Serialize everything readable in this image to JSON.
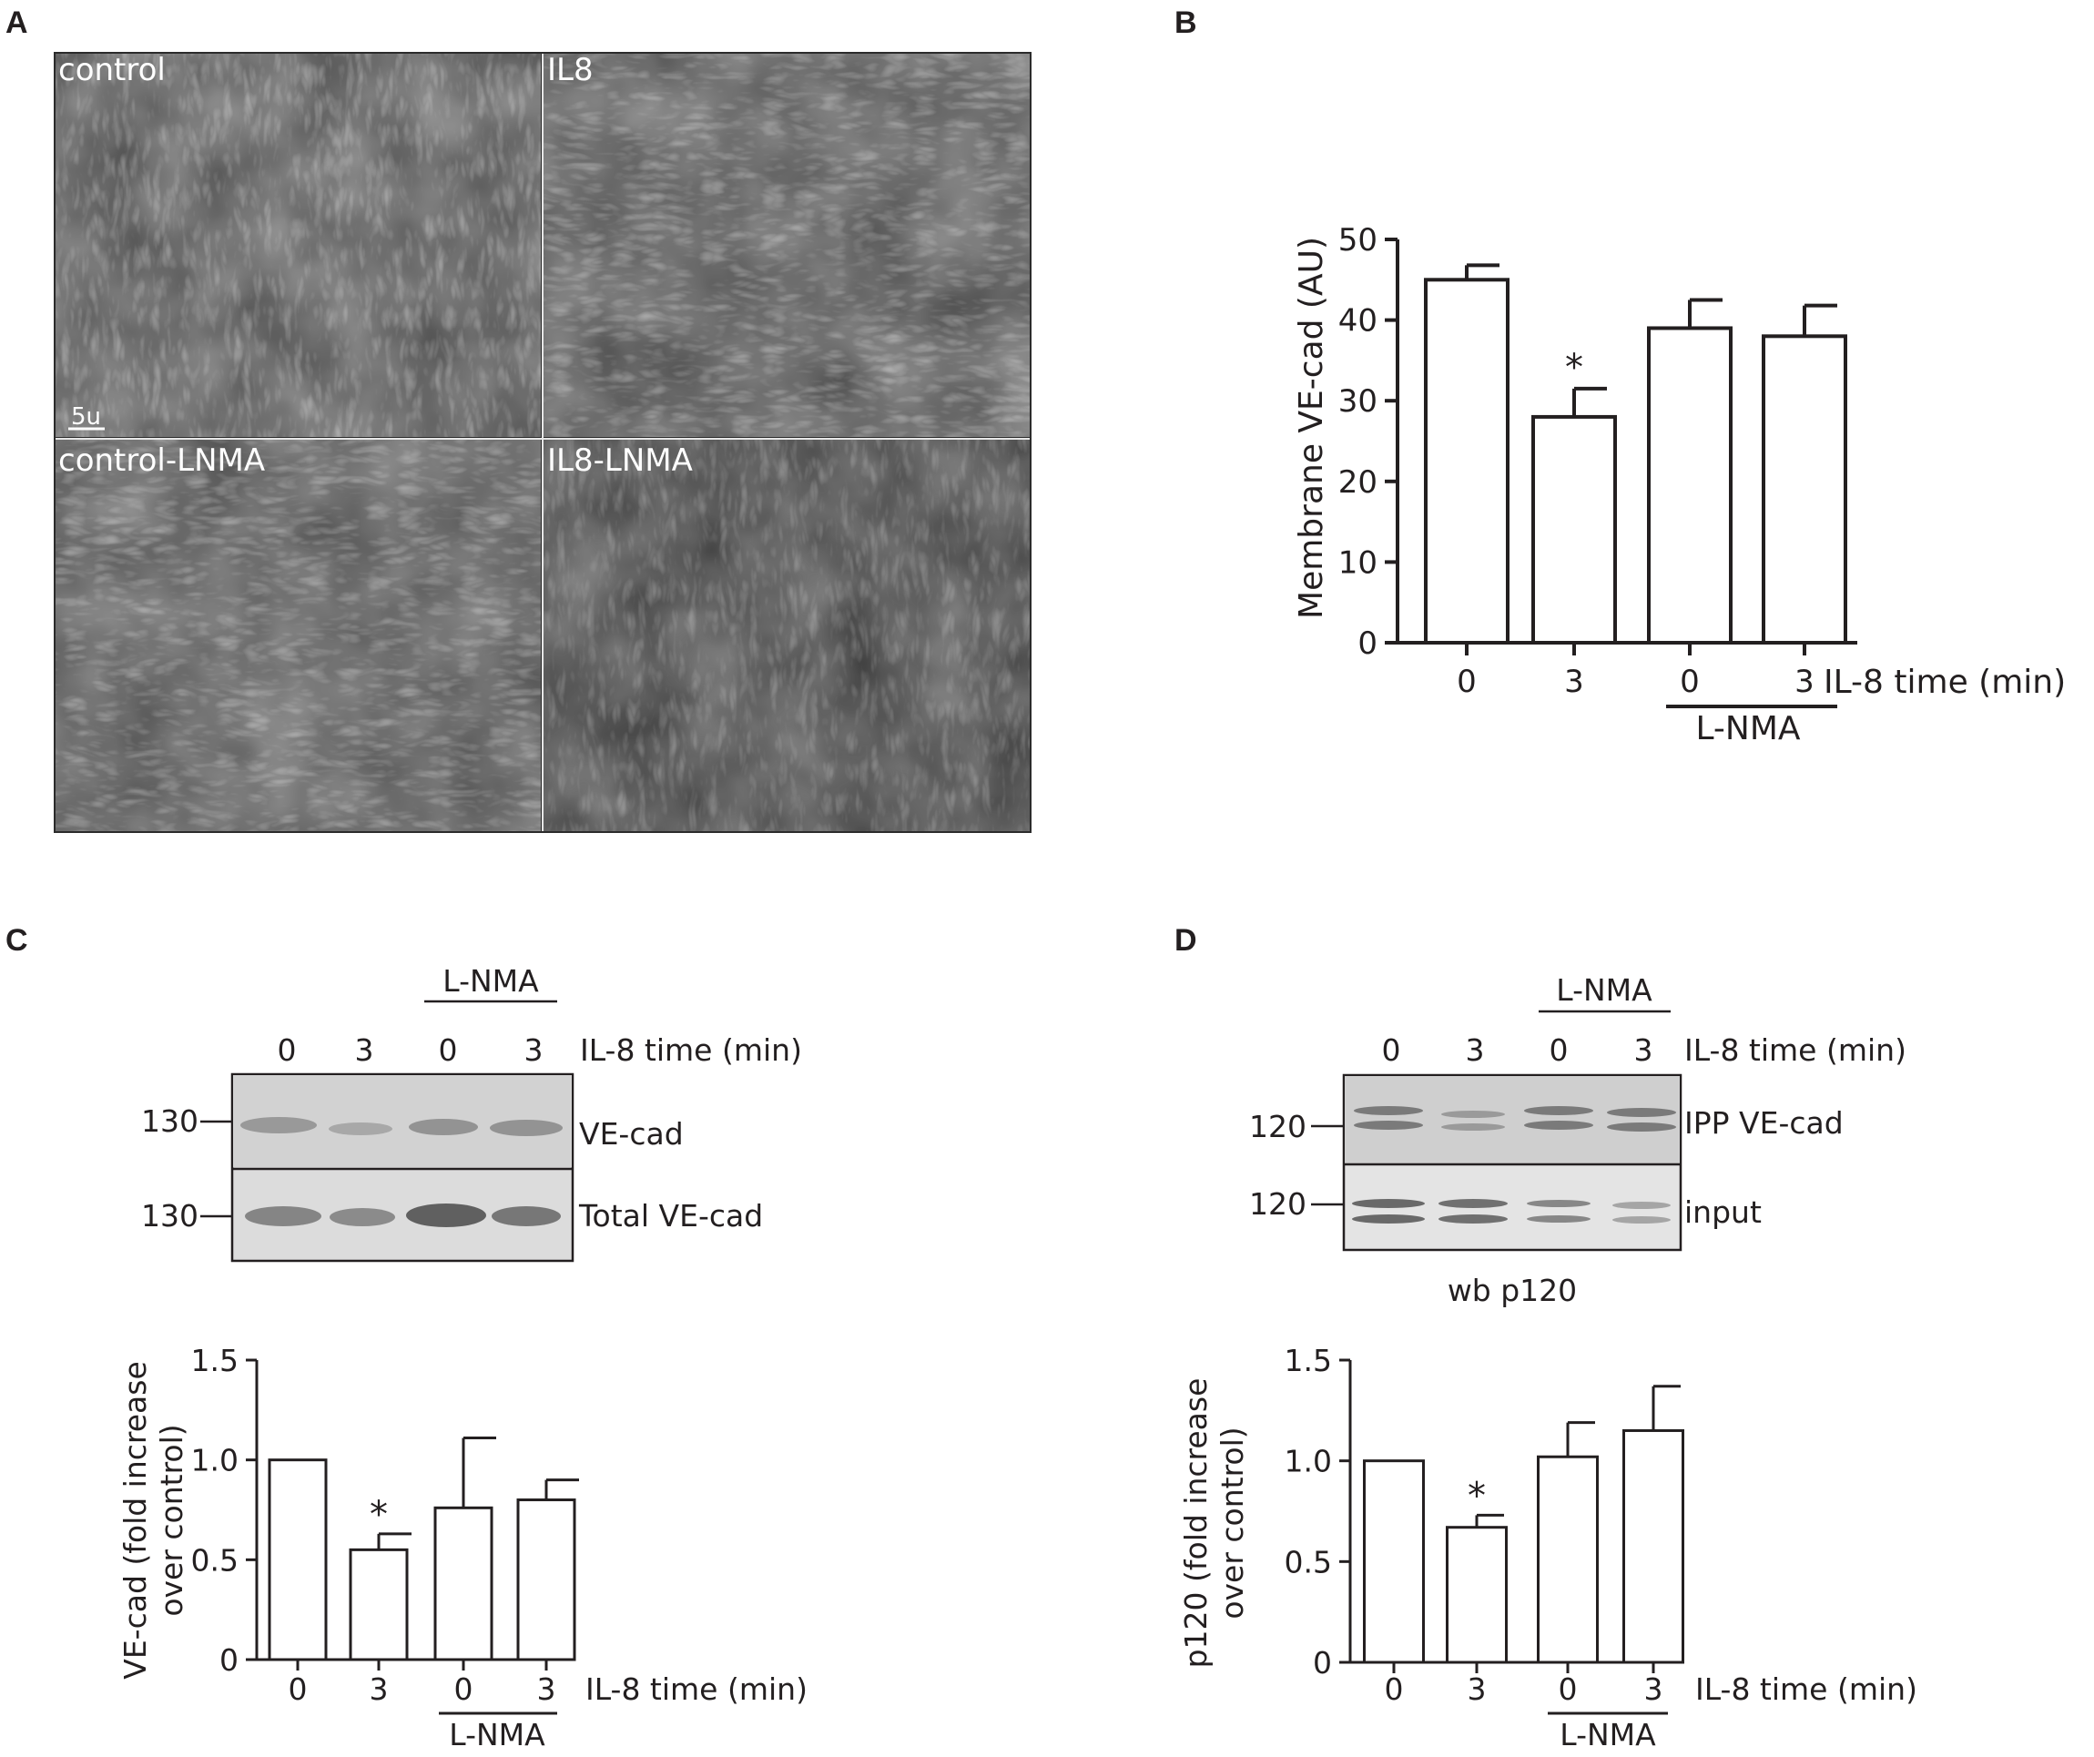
{
  "panel_a": {
    "label": "A",
    "images": [
      {
        "name": "control",
        "label": "control",
        "scale_bar": "5u"
      },
      {
        "name": "il8",
        "label": "IL8"
      },
      {
        "name": "control-lnma",
        "label": "control-LNMA"
      },
      {
        "name": "il8-lnma",
        "label": "IL8-LNMA"
      }
    ]
  },
  "panel_b": {
    "label": "B"
  },
  "panel_c": {
    "label": "C",
    "blot": {
      "group_label": "L-NMA",
      "lanes": [
        "0",
        "3",
        "0",
        "3"
      ],
      "lane_axis_label": "IL-8 time (min)",
      "rows": [
        {
          "name": "ve-cad",
          "label": "VE-cad",
          "marker": "130"
        },
        {
          "name": "total-ve-cad",
          "label": "Total VE-cad",
          "marker": "130"
        }
      ]
    }
  },
  "panel_d": {
    "label": "D",
    "blot": {
      "group_label": "L-NMA",
      "lanes": [
        "0",
        "3",
        "0",
        "3"
      ],
      "lane_axis_label": "IL-8 time (min)",
      "rows": [
        {
          "name": "ipp-ve-cad",
          "label": "IPP VE-cad",
          "marker": "120"
        },
        {
          "name": "input",
          "label": "input",
          "marker": "120"
        }
      ],
      "footer": "wb p120"
    }
  },
  "chart_data": [
    {
      "id": "B",
      "type": "bar",
      "categories": [
        "0",
        "3",
        "0",
        "3"
      ],
      "values": [
        45,
        28,
        39,
        38
      ],
      "errors": [
        1.8,
        3.5,
        3.5,
        3.8
      ],
      "significance": [
        "",
        "*",
        "",
        ""
      ],
      "group_label": "L-NMA",
      "xlabel": "IL-8 time (min)",
      "ylabel": "Membrane  VE-cad (AU)",
      "ylim": [
        0,
        50
      ],
      "yticks": [
        "0",
        "10",
        "20",
        "30",
        "40",
        "50"
      ]
    },
    {
      "id": "C",
      "type": "bar",
      "categories": [
        "0",
        "3",
        "0",
        "3"
      ],
      "values": [
        1.0,
        0.55,
        0.76,
        0.8
      ],
      "errors": [
        0,
        0.08,
        0.35,
        0.1
      ],
      "significance": [
        "",
        "*",
        "",
        ""
      ],
      "group_label": "L-NMA",
      "xlabel": "IL-8 time (min)",
      "ylabel_lines": [
        "VE-cad (fold increase",
        "over control)"
      ],
      "ylim": [
        0,
        1.5
      ],
      "yticks": [
        "0",
        "0.5",
        "1.0",
        "1.5"
      ]
    },
    {
      "id": "D",
      "type": "bar",
      "categories": [
        "0",
        "3",
        "0",
        "3"
      ],
      "values": [
        1.0,
        0.67,
        1.02,
        1.15
      ],
      "errors": [
        0,
        0.06,
        0.17,
        0.22
      ],
      "significance": [
        "",
        "*",
        "",
        ""
      ],
      "group_label": "L-NMA",
      "xlabel": "IL-8 time (min)",
      "ylabel_lines": [
        "p120  (fold increase",
        "over control)"
      ],
      "ylim": [
        0,
        1.5
      ],
      "yticks": [
        "0",
        "0.5",
        "1.0",
        "1.5"
      ]
    }
  ]
}
